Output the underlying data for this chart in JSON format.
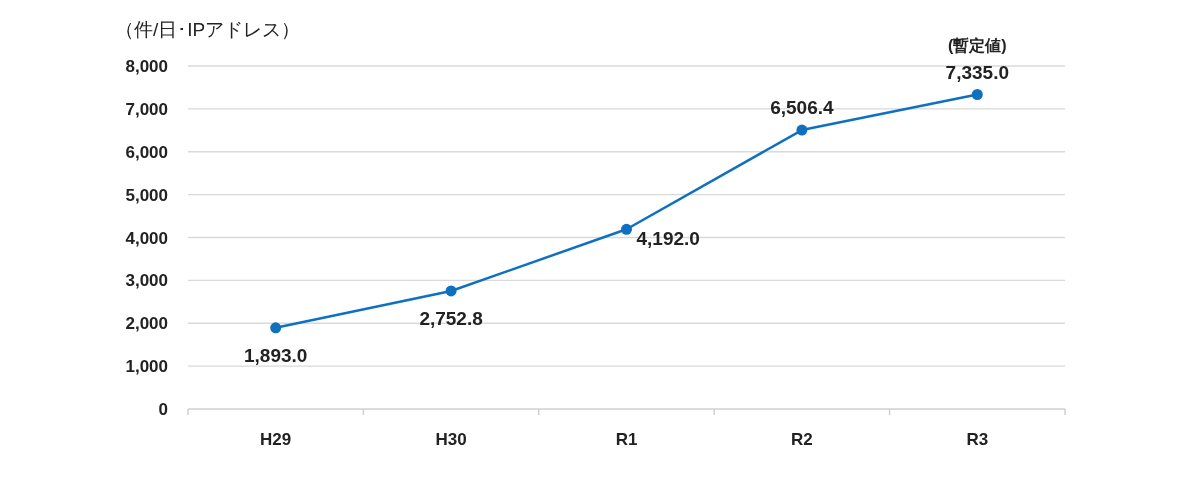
{
  "chart_data": {
    "type": "line",
    "ylabel": "（件/日･IPアドレス）",
    "categories": [
      "H29",
      "H30",
      "R1",
      "R2",
      "R3"
    ],
    "series": [
      {
        "color": "#0f70c0",
        "values": [
          1893.0,
          2752.8,
          4192.0,
          6506.4,
          7335.0
        ]
      }
    ],
    "value_labels": [
      "1,893.0",
      "2,752.8",
      "4,192.0",
      "6,506.4",
      "7,335.0"
    ],
    "annotations": [
      {
        "text": "(暫定値)",
        "x": "R3",
        "y": 7335.0
      }
    ],
    "ylim": [
      0,
      8000
    ],
    "yticks": [
      {
        "value": 0,
        "label": "0"
      },
      {
        "value": 1000,
        "label": "1,000"
      },
      {
        "value": 2000,
        "label": "2,000"
      },
      {
        "value": 3000,
        "label": "3,000"
      },
      {
        "value": 4000,
        "label": "4,000"
      },
      {
        "value": 5000,
        "label": "5,000"
      },
      {
        "value": 6000,
        "label": "6,000"
      },
      {
        "value": 7000,
        "label": "7,000"
      },
      {
        "value": 8000,
        "label": "8,000"
      }
    ],
    "grid": "y",
    "marker": "circle"
  }
}
